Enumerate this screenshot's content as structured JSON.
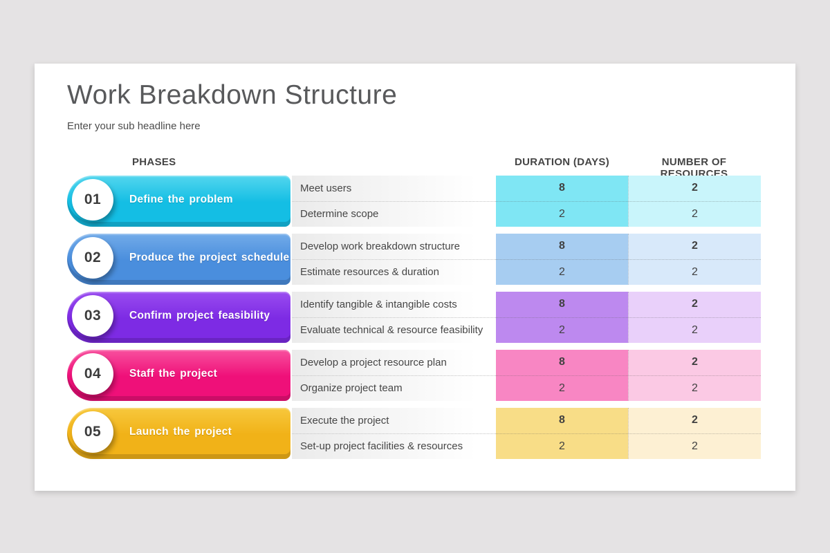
{
  "background_color": "#e5e3e4",
  "header": {
    "title": "Work Breakdown Structure",
    "subtitle": "Enter your sub headline here"
  },
  "table": {
    "columns": {
      "phases": "PHASES",
      "duration": "DURATION (DAYS)",
      "resources": "NUMBER OF RESOURCES"
    },
    "phases": [
      {
        "number": "01",
        "label": "Define the problem",
        "colors": {
          "light": "#53d6ee",
          "main": "#14bee4",
          "dur": "#7fe6f4",
          "res": "#c9f5fb"
        },
        "tasks": [
          {
            "name": "Meet users",
            "duration": "8",
            "resources": "2"
          },
          {
            "name": "Determine scope",
            "duration": "2",
            "resources": "2"
          }
        ]
      },
      {
        "number": "02",
        "label": "Produce the project schedule",
        "colors": {
          "light": "#72abe9",
          "main": "#4a8edd",
          "dur": "#a7cdf1",
          "res": "#d8e9fa"
        },
        "tasks": [
          {
            "name": "Develop work breakdown structure",
            "duration": "8",
            "resources": "2"
          },
          {
            "name": "Estimate resources & duration",
            "duration": "2",
            "resources": "2"
          }
        ]
      },
      {
        "number": "03",
        "label": "Confirm project feasibility",
        "colors": {
          "light": "#9a4cf0",
          "main": "#7d2be4",
          "dur": "#bd89ef",
          "res": "#e9d0fa"
        },
        "tasks": [
          {
            "name": "Identify tangible & intangible costs",
            "duration": "8",
            "resources": "2"
          },
          {
            "name": "Evaluate technical & resource feasibility",
            "duration": "2",
            "resources": "2"
          }
        ]
      },
      {
        "number": "04",
        "label": "Staff the project",
        "colors": {
          "light": "#f8509e",
          "main": "#ef1079",
          "dur": "#f886c3",
          "res": "#fbc9e4"
        },
        "tasks": [
          {
            "name": "Develop a project resource plan",
            "duration": "8",
            "resources": "2"
          },
          {
            "name": "Organize project team",
            "duration": "2",
            "resources": "2"
          }
        ]
      },
      {
        "number": "05",
        "label": "Launch the project",
        "colors": {
          "light": "#f7c83d",
          "main": "#f1b218",
          "dur": "#f8dd87",
          "res": "#fdf0d3"
        },
        "tasks": [
          {
            "name": "Execute the project",
            "duration": "8",
            "resources": "2"
          },
          {
            "name": "Set-up project facilities & resources",
            "duration": "2",
            "resources": "2"
          }
        ]
      }
    ]
  }
}
